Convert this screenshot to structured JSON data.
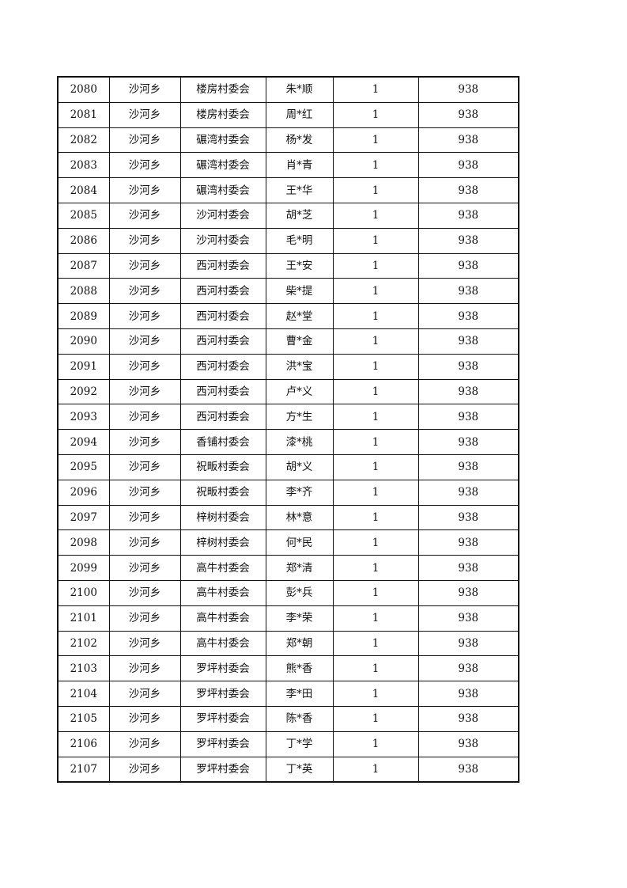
{
  "table": {
    "rows": [
      [
        "2080",
        "沙河乡",
        "楼房村委会",
        "朱*顺",
        "1",
        "938"
      ],
      [
        "2081",
        "沙河乡",
        "楼房村委会",
        "周*红",
        "1",
        "938"
      ],
      [
        "2082",
        "沙河乡",
        "碾湾村委会",
        "杨*发",
        "1",
        "938"
      ],
      [
        "2083",
        "沙河乡",
        "碾湾村委会",
        "肖*青",
        "1",
        "938"
      ],
      [
        "2084",
        "沙河乡",
        "碾湾村委会",
        "王*华",
        "1",
        "938"
      ],
      [
        "2085",
        "沙河乡",
        "沙河村委会",
        "胡*芝",
        "1",
        "938"
      ],
      [
        "2086",
        "沙河乡",
        "沙河村委会",
        "毛*明",
        "1",
        "938"
      ],
      [
        "2087",
        "沙河乡",
        "西河村委会",
        "王*安",
        "1",
        "938"
      ],
      [
        "2088",
        "沙河乡",
        "西河村委会",
        "柴*提",
        "1",
        "938"
      ],
      [
        "2089",
        "沙河乡",
        "西河村委会",
        "赵*堂",
        "1",
        "938"
      ],
      [
        "2090",
        "沙河乡",
        "西河村委会",
        "曹*金",
        "1",
        "938"
      ],
      [
        "2091",
        "沙河乡",
        "西河村委会",
        "洪*宝",
        "1",
        "938"
      ],
      [
        "2092",
        "沙河乡",
        "西河村委会",
        "卢*义",
        "1",
        "938"
      ],
      [
        "2093",
        "沙河乡",
        "西河村委会",
        "方*生",
        "1",
        "938"
      ],
      [
        "2094",
        "沙河乡",
        "香铺村委会",
        "漆*桃",
        "1",
        "938"
      ],
      [
        "2095",
        "沙河乡",
        "祝畈村委会",
        "胡*义",
        "1",
        "938"
      ],
      [
        "2096",
        "沙河乡",
        "祝畈村委会",
        "李*齐",
        "1",
        "938"
      ],
      [
        "2097",
        "沙河乡",
        "梓树村委会",
        "林*意",
        "1",
        "938"
      ],
      [
        "2098",
        "沙河乡",
        "梓树村委会",
        "何*民",
        "1",
        "938"
      ],
      [
        "2099",
        "沙河乡",
        "高牛村委会",
        "郑*清",
        "1",
        "938"
      ],
      [
        "2100",
        "沙河乡",
        "高牛村委会",
        "彭*兵",
        "1",
        "938"
      ],
      [
        "2101",
        "沙河乡",
        "高牛村委会",
        "李*荣",
        "1",
        "938"
      ],
      [
        "2102",
        "沙河乡",
        "高牛村委会",
        "郑*朝",
        "1",
        "938"
      ],
      [
        "2103",
        "沙河乡",
        "罗坪村委会",
        "熊*香",
        "1",
        "938"
      ],
      [
        "2104",
        "沙河乡",
        "罗坪村委会",
        "李*田",
        "1",
        "938"
      ],
      [
        "2105",
        "沙河乡",
        "罗坪村委会",
        "陈*香",
        "1",
        "938"
      ],
      [
        "2106",
        "沙河乡",
        "罗坪村委会",
        "丁*学",
        "1",
        "938"
      ],
      [
        "2107",
        "沙河乡",
        "罗坪村委会",
        "丁*英",
        "1",
        "938"
      ]
    ]
  }
}
